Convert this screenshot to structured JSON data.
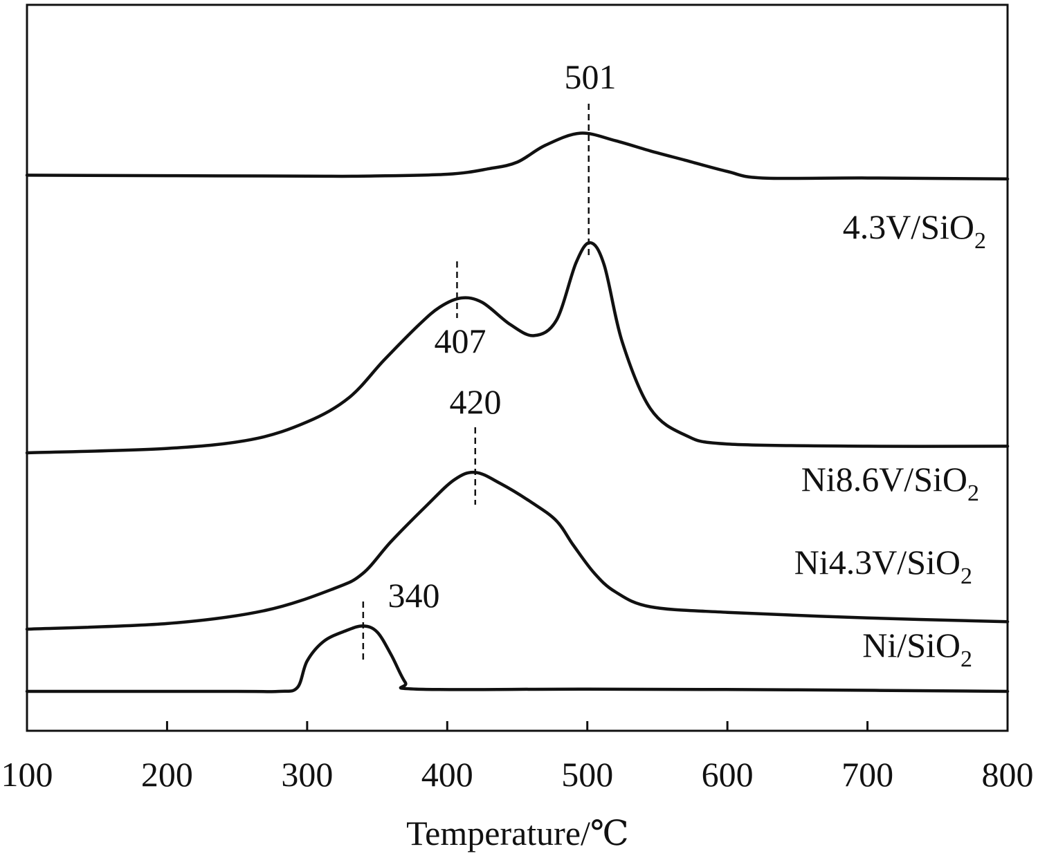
{
  "chart_data": {
    "type": "line",
    "title": "",
    "xlabel": "Temperature/℃",
    "ylabel": "",
    "xlim": [
      100,
      800
    ],
    "x_ticks": [
      100,
      200,
      300,
      400,
      500,
      600,
      700,
      800
    ],
    "x_tick_labels": [
      "100",
      "200",
      "300",
      "400",
      "500",
      "600",
      "700",
      "800"
    ],
    "y_ticks_visible": false,
    "grid": false,
    "legend": "none",
    "line_color": "#111111",
    "series": [
      {
        "name_main": "4.3V/SiO",
        "name_sub": "2",
        "peaks": [
          501
        ],
        "points": [
          [
            100,
            0.16
          ],
          [
            200,
            0.155
          ],
          [
            300,
            0.15
          ],
          [
            340,
            0.15
          ],
          [
            400,
            0.17
          ],
          [
            430,
            0.23
          ],
          [
            450,
            0.3
          ],
          [
            470,
            0.48
          ],
          [
            495,
            0.61
          ],
          [
            520,
            0.53
          ],
          [
            545,
            0.42
          ],
          [
            570,
            0.32
          ],
          [
            600,
            0.2
          ],
          [
            625,
            0.13
          ],
          [
            700,
            0.13
          ],
          [
            800,
            0.12
          ]
        ]
      },
      {
        "name_main": "Ni8.6V/SiO",
        "name_sub": "2",
        "peaks": [
          407,
          501
        ],
        "points": [
          [
            100,
            0.0
          ],
          [
            200,
            0.02
          ],
          [
            260,
            0.06
          ],
          [
            300,
            0.14
          ],
          [
            330,
            0.25
          ],
          [
            355,
            0.42
          ],
          [
            380,
            0.58
          ],
          [
            395,
            0.66
          ],
          [
            410,
            0.7
          ],
          [
            425,
            0.68
          ],
          [
            445,
            0.58
          ],
          [
            462,
            0.53
          ],
          [
            478,
            0.6
          ],
          [
            492,
            0.86
          ],
          [
            502,
            0.95
          ],
          [
            512,
            0.85
          ],
          [
            525,
            0.5
          ],
          [
            545,
            0.2
          ],
          [
            570,
            0.08
          ],
          [
            600,
            0.04
          ],
          [
            700,
            0.03
          ],
          [
            800,
            0.03
          ]
        ]
      },
      {
        "name_main": "Ni4.3V/SiO",
        "name_sub": "2",
        "peaks": [
          420
        ],
        "points": [
          [
            100,
            0.0
          ],
          [
            200,
            0.03
          ],
          [
            270,
            0.1
          ],
          [
            320,
            0.22
          ],
          [
            340,
            0.3
          ],
          [
            360,
            0.47
          ],
          [
            385,
            0.66
          ],
          [
            405,
            0.8
          ],
          [
            420,
            0.84
          ],
          [
            438,
            0.78
          ],
          [
            460,
            0.68
          ],
          [
            478,
            0.58
          ],
          [
            490,
            0.45
          ],
          [
            505,
            0.3
          ],
          [
            520,
            0.2
          ],
          [
            545,
            0.12
          ],
          [
            600,
            0.09
          ],
          [
            700,
            0.06
          ],
          [
            800,
            0.04
          ]
        ]
      },
      {
        "name_main": "Ni/SiO",
        "name_sub": "2",
        "peaks": [
          340
        ],
        "points": [
          [
            100,
            0.0
          ],
          [
            250,
            0.0
          ],
          [
            280,
            0.0
          ],
          [
            293,
            0.05
          ],
          [
            300,
            0.4
          ],
          [
            312,
            0.66
          ],
          [
            328,
            0.8
          ],
          [
            340,
            0.86
          ],
          [
            350,
            0.78
          ],
          [
            360,
            0.48
          ],
          [
            370,
            0.12
          ],
          [
            378,
            0.03
          ],
          [
            500,
            0.03
          ],
          [
            650,
            0.02
          ],
          [
            800,
            0.0
          ]
        ]
      }
    ]
  }
}
